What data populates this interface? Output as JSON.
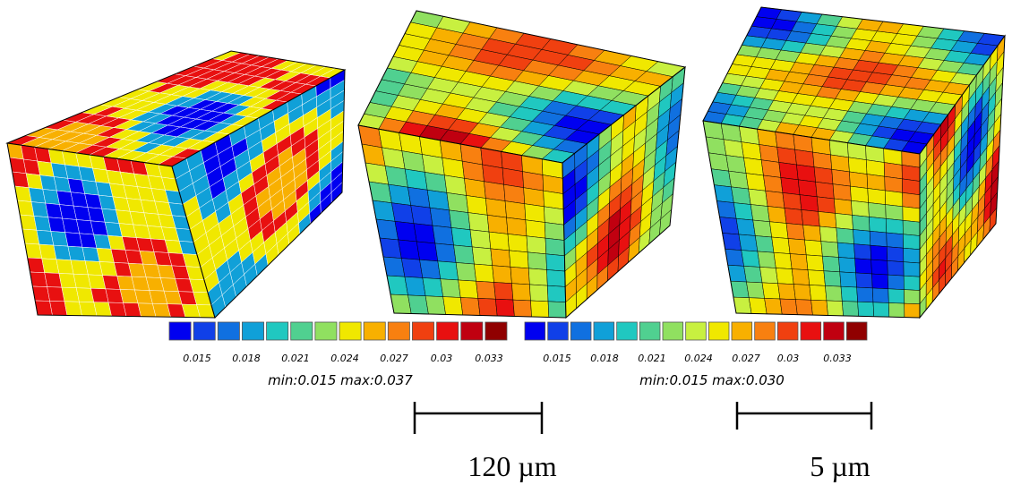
{
  "colorbars": [
    {
      "ticks": [
        "0.015",
        "0.018",
        "0.021",
        "0.024",
        "0.027",
        "0.03",
        "0.033"
      ],
      "range_label": "min:0.015 max:0.037"
    },
    {
      "ticks": [
        "0.015",
        "0.018",
        "0.021",
        "0.024",
        "0.027",
        "0.03",
        "0.033"
      ],
      "range_label": "min:0.015 max:0.030"
    }
  ],
  "scale_bars": [
    {
      "label": "120 µm"
    },
    {
      "label": "5 µm"
    }
  ]
}
